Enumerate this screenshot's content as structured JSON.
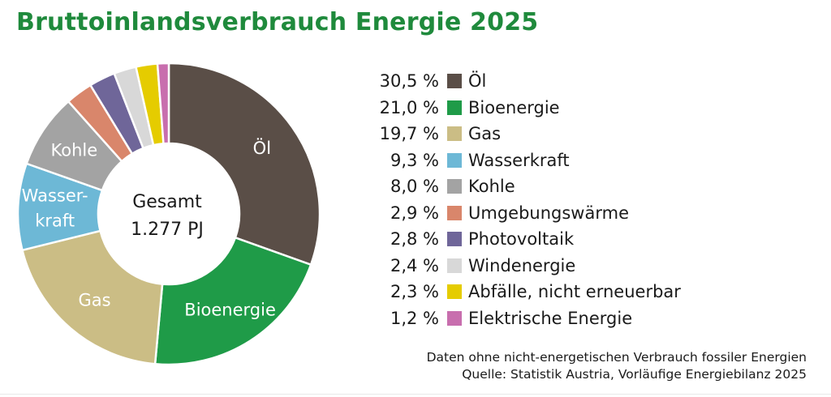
{
  "title": "Bruttoinlandsverbrauch Energie 2025",
  "chart_data": {
    "type": "pie",
    "title": "Bruttoinlandsverbrauch Energie 2025",
    "center_label": [
      "Gesamt",
      "1.277 PJ"
    ],
    "unit": "%",
    "slices": [
      {
        "label": "Öl",
        "value": 30.5,
        "value_text": "30,5 %",
        "color": "#5a4e47",
        "wedge_label": [
          "Öl"
        ]
      },
      {
        "label": "Bioenergie",
        "value": 21.0,
        "value_text": "21,0 %",
        "color": "#1f9b48",
        "wedge_label": [
          "Bioenergie"
        ]
      },
      {
        "label": "Gas",
        "value": 19.7,
        "value_text": "19,7 %",
        "color": "#cbbd85",
        "wedge_label": [
          "Gas"
        ]
      },
      {
        "label": "Wasserkraft",
        "value": 9.3,
        "value_text": "9,3 %",
        "color": "#6db8d6",
        "wedge_label": [
          "Wasser-",
          "kraft"
        ]
      },
      {
        "label": "Kohle",
        "value": 8.0,
        "value_text": "8,0 %",
        "color": "#a3a3a3",
        "wedge_label": [
          "Kohle"
        ]
      },
      {
        "label": "Umgebungswärme",
        "value": 2.9,
        "value_text": "2,9 %",
        "color": "#d9866b",
        "wedge_label": []
      },
      {
        "label": "Photovoltaik",
        "value": 2.8,
        "value_text": "2,8 %",
        "color": "#6f6699",
        "wedge_label": []
      },
      {
        "label": "Windenergie",
        "value": 2.4,
        "value_text": "2,4 %",
        "color": "#d8d8d8",
        "wedge_label": []
      },
      {
        "label": "Abfälle, nicht erneuerbar",
        "value": 2.3,
        "value_text": "2,3 %",
        "color": "#e5cc00",
        "wedge_label": []
      },
      {
        "label": "Elektrische Energie",
        "value": 1.2,
        "value_text": "1,2 %",
        "color": "#c86eae",
        "wedge_label": []
      }
    ]
  },
  "footnote": {
    "line1": "Daten ohne nicht-energetischen Verbrauch fossiler Energien",
    "line2": "Quelle: Statistik Austria, Vorläufige Energiebilanz 2025"
  }
}
